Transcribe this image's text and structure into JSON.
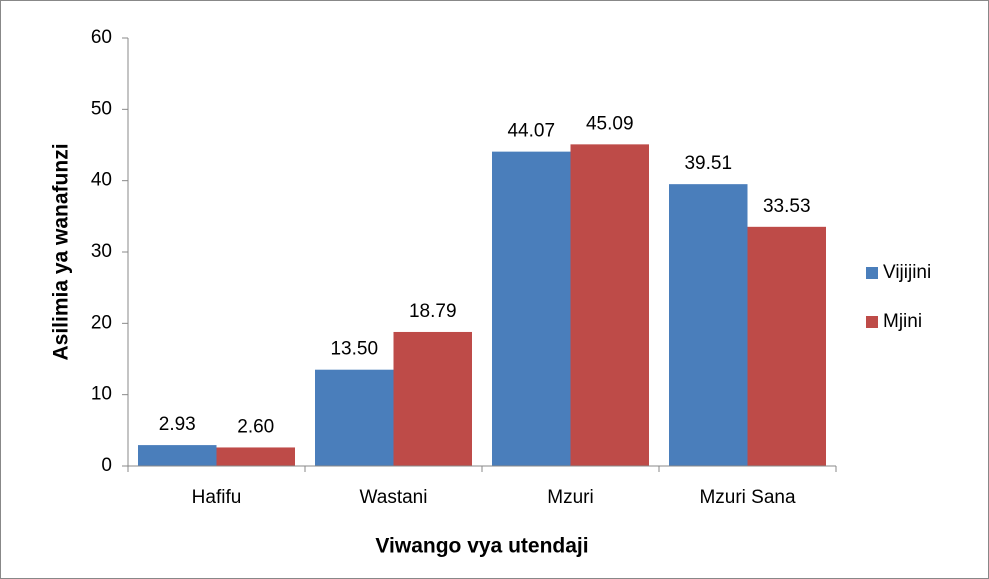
{
  "chart_data": {
    "type": "bar",
    "x_label": "Viwango vya utendaji",
    "y_label": "Asilimia ya wanafunzi",
    "categories": [
      "Hafifu",
      "Wastani",
      "Mzuri",
      "Mzuri Sana"
    ],
    "series": [
      {
        "name": "Vijijini",
        "color": "#4a7ebb",
        "values": [
          2.93,
          13.5,
          44.07,
          39.51
        ],
        "value_labels": [
          "2.93",
          "13.50",
          "44.07",
          "39.51"
        ]
      },
      {
        "name": "Mjini",
        "color": "#be4b48",
        "values": [
          2.6,
          18.79,
          45.09,
          33.53
        ],
        "value_labels": [
          "2.60",
          "18.79",
          "45.09",
          "33.53"
        ]
      }
    ],
    "ylim": [
      0,
      60
    ],
    "yticks": [
      0,
      10,
      20,
      30,
      40,
      50,
      60
    ],
    "grid": false,
    "legend": "right"
  }
}
